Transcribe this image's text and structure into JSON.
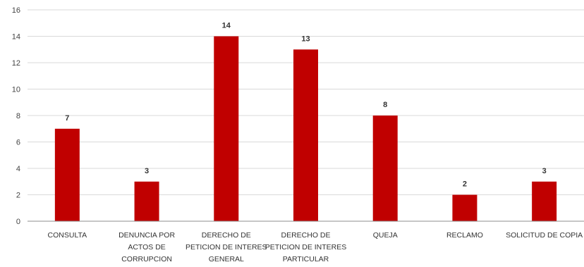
{
  "chart_data": {
    "type": "bar",
    "categories": [
      "CONSULTA",
      "DENUNCIA POR ACTOS DE CORRUPCION",
      "DERECHO DE PETICION DE INTERES GENERAL",
      "DERECHO DE PETICION DE INTERES PARTICULAR",
      "QUEJA",
      "RECLAMO",
      "SOLICITUD DE COPIA"
    ],
    "category_label_lines": [
      [
        "CONSULTA"
      ],
      [
        "DENUNCIA POR",
        "ACTOS DE",
        "CORRUPCION"
      ],
      [
        "DERECHO DE",
        "PETICION DE INTERES",
        "GENERAL"
      ],
      [
        "DERECHO DE",
        "PETICION DE INTERES",
        "PARTICULAR"
      ],
      [
        "QUEJA"
      ],
      [
        "RECLAMO"
      ],
      [
        "SOLICITUD DE COPIA"
      ]
    ],
    "values": [
      7,
      3,
      14,
      13,
      8,
      2,
      3
    ],
    "yticks": [
      0,
      2,
      4,
      6,
      8,
      10,
      12,
      14,
      16
    ],
    "ylim": [
      0,
      16
    ],
    "grid": true,
    "data_labels": true,
    "bar_color": "#c00000",
    "grid_color": "#d9d9d9"
  }
}
